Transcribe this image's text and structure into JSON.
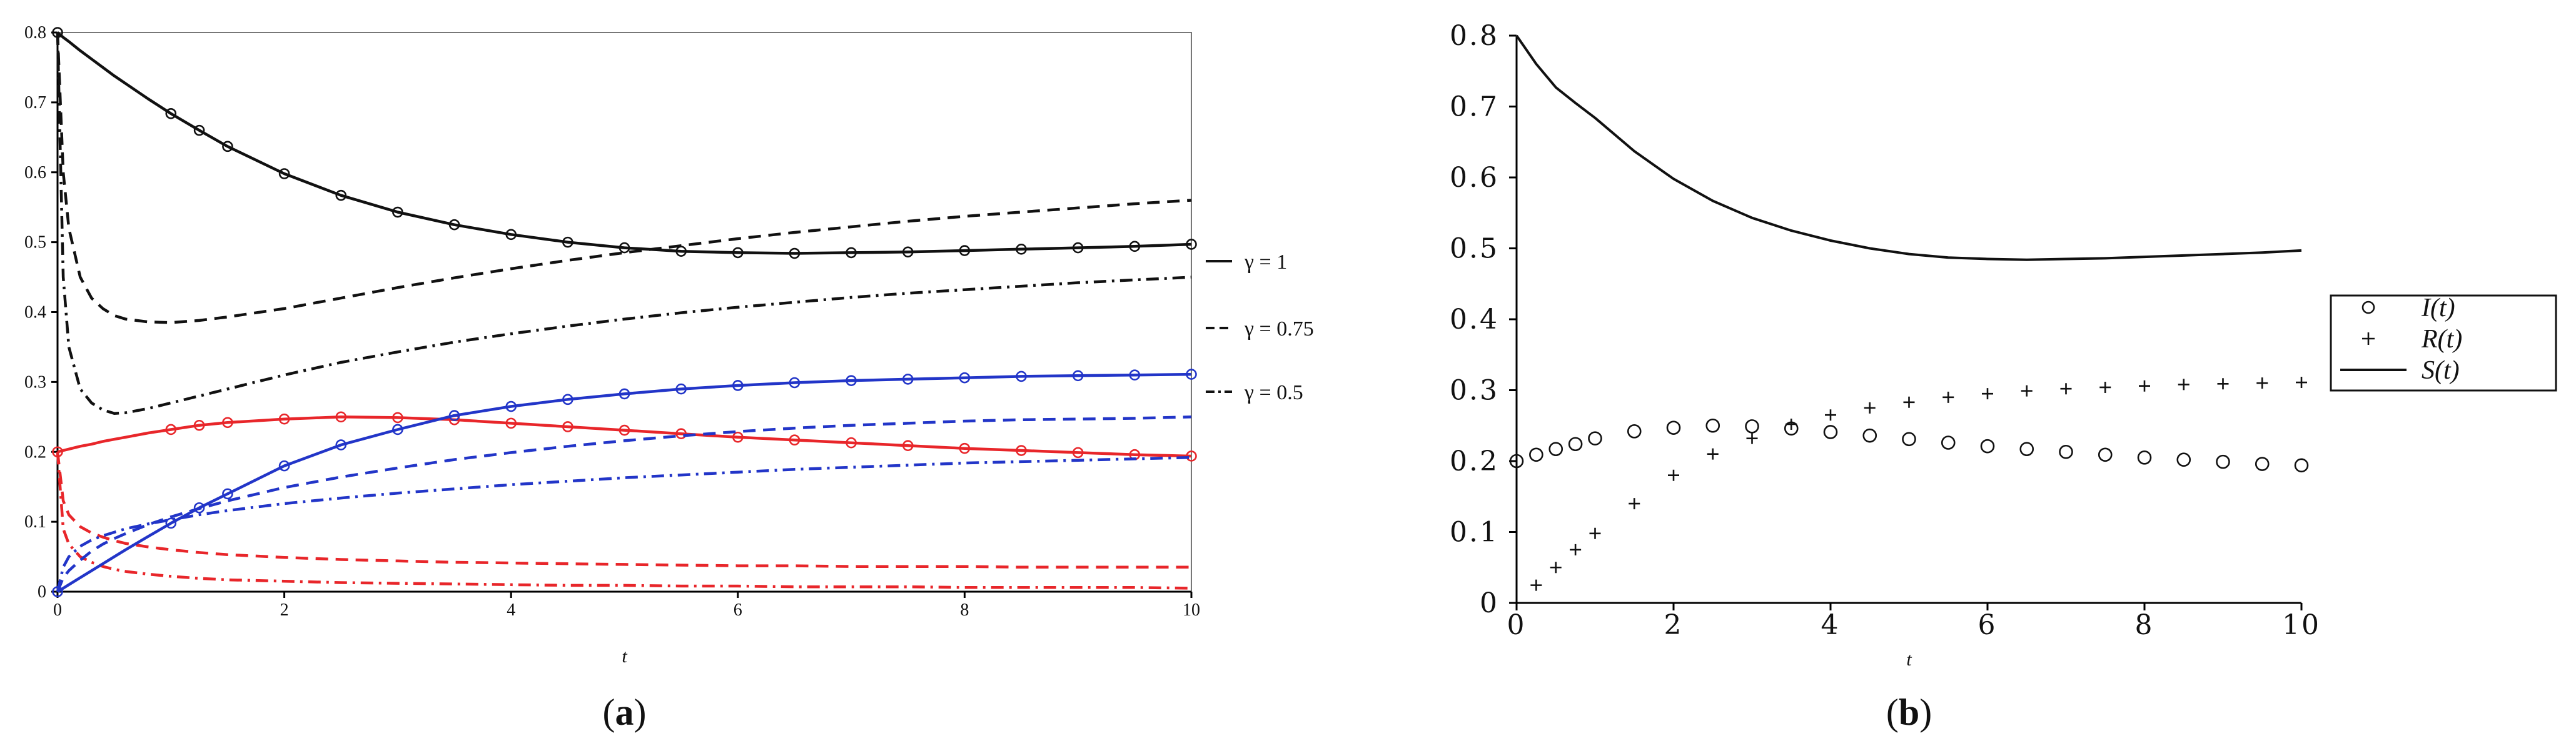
{
  "colors": {
    "black": "#111111",
    "red": "#e8262a",
    "blue": "#2235c8"
  },
  "chart_data": [
    {
      "type": "line",
      "panel_label": "a",
      "title": "",
      "xlabel": "t",
      "ylabel": "",
      "xlim": [
        0,
        10
      ],
      "ylim": [
        0,
        0.8
      ],
      "x_ticks": [
        "0",
        "2",
        "4",
        "6",
        "8",
        "10"
      ],
      "y_ticks": [
        "0",
        "0.1",
        "0.2",
        "0.3",
        "0.4",
        "0.5",
        "0.6",
        "0.7",
        "0.8"
      ],
      "legend": [
        {
          "label": "γ = 1",
          "style": "solid"
        },
        {
          "label": "γ = 0.75",
          "style": "dashed"
        },
        {
          "label": "γ = 0.5",
          "style": "dashdot"
        }
      ],
      "x": [
        0,
        0.05,
        0.1,
        0.2,
        0.3,
        0.4,
        0.5,
        0.6,
        0.8,
        1,
        1.25,
        1.5,
        2,
        2.5,
        3,
        3.5,
        4,
        4.5,
        5,
        5.5,
        6,
        6.5,
        7,
        7.5,
        8,
        8.5,
        9,
        9.5,
        10
      ],
      "series": [
        {
          "name": "S(t), γ = 1",
          "group": "S",
          "gamma": 1,
          "color": "black",
          "style": "solid",
          "markers": true,
          "values": [
            0.8,
            0.793,
            0.787,
            0.774,
            0.762,
            0.75,
            0.738,
            0.727,
            0.705,
            0.684,
            0.66,
            0.637,
            0.598,
            0.567,
            0.543,
            0.525,
            0.511,
            0.5,
            0.492,
            0.487,
            0.485,
            0.484,
            0.485,
            0.486,
            0.488,
            0.49,
            0.492,
            0.494,
            0.497
          ]
        },
        {
          "name": "S(t), γ = 0.75",
          "group": "S",
          "gamma": 0.75,
          "color": "black",
          "style": "dashed",
          "markers": false,
          "values": [
            0.8,
            0.6,
            0.52,
            0.45,
            0.42,
            0.405,
            0.395,
            0.39,
            0.386,
            0.385,
            0.388,
            0.393,
            0.405,
            0.42,
            0.435,
            0.449,
            0.462,
            0.474,
            0.485,
            0.495,
            0.505,
            0.514,
            0.522,
            0.53,
            0.537,
            0.543,
            0.549,
            0.555,
            0.56
          ]
        },
        {
          "name": "S(t), γ = 0.5",
          "group": "S",
          "gamma": 0.5,
          "color": "black",
          "style": "dashdot",
          "markers": false,
          "values": [
            0.8,
            0.45,
            0.35,
            0.29,
            0.27,
            0.26,
            0.255,
            0.256,
            0.262,
            0.27,
            0.28,
            0.29,
            0.31,
            0.328,
            0.343,
            0.357,
            0.369,
            0.38,
            0.39,
            0.399,
            0.407,
            0.414,
            0.421,
            0.427,
            0.432,
            0.437,
            0.442,
            0.446,
            0.45
          ]
        },
        {
          "name": "I(t), γ = 1",
          "group": "I",
          "gamma": 1,
          "color": "red",
          "style": "solid",
          "markers": true,
          "values": [
            0.2,
            0.202,
            0.204,
            0.208,
            0.211,
            0.215,
            0.218,
            0.221,
            0.227,
            0.232,
            0.238,
            0.242,
            0.247,
            0.25,
            0.249,
            0.246,
            0.241,
            0.236,
            0.231,
            0.226,
            0.221,
            0.217,
            0.213,
            0.209,
            0.205,
            0.202,
            0.199,
            0.196,
            0.194
          ]
        },
        {
          "name": "I(t), γ = 0.75",
          "group": "I",
          "gamma": 0.75,
          "color": "red",
          "style": "dashed",
          "markers": false,
          "values": [
            0.2,
            0.13,
            0.11,
            0.093,
            0.084,
            0.078,
            0.073,
            0.069,
            0.064,
            0.06,
            0.056,
            0.053,
            0.049,
            0.046,
            0.044,
            0.042,
            0.041,
            0.04,
            0.039,
            0.038,
            0.037,
            0.037,
            0.036,
            0.036,
            0.036,
            0.035,
            0.035,
            0.035,
            0.035
          ]
        },
        {
          "name": "I(t), γ = 0.5",
          "group": "I",
          "gamma": 0.5,
          "color": "red",
          "style": "dashdot",
          "markers": false,
          "values": [
            0.2,
            0.09,
            0.068,
            0.05,
            0.042,
            0.036,
            0.032,
            0.029,
            0.025,
            0.022,
            0.019,
            0.017,
            0.015,
            0.013,
            0.012,
            0.011,
            0.01,
            0.009,
            0.009,
            0.008,
            0.008,
            0.007,
            0.007,
            0.007,
            0.006,
            0.006,
            0.006,
            0.006,
            0.005
          ]
        },
        {
          "name": "R(t), γ = 1",
          "group": "R",
          "gamma": 1,
          "color": "blue",
          "style": "solid",
          "markers": true,
          "values": [
            0,
            0.005,
            0.01,
            0.02,
            0.03,
            0.04,
            0.05,
            0.06,
            0.079,
            0.098,
            0.12,
            0.14,
            0.18,
            0.21,
            0.232,
            0.252,
            0.265,
            0.275,
            0.283,
            0.29,
            0.295,
            0.299,
            0.302,
            0.304,
            0.306,
            0.308,
            0.309,
            0.31,
            0.311
          ]
        },
        {
          "name": "R(t), γ = 0.75",
          "group": "R",
          "gamma": 0.75,
          "color": "blue",
          "style": "dashed",
          "markers": false,
          "values": [
            0,
            0.02,
            0.03,
            0.045,
            0.058,
            0.068,
            0.076,
            0.083,
            0.096,
            0.107,
            0.119,
            0.13,
            0.149,
            0.164,
            0.177,
            0.189,
            0.199,
            0.208,
            0.216,
            0.223,
            0.229,
            0.234,
            0.238,
            0.241,
            0.244,
            0.246,
            0.247,
            0.248,
            0.25
          ]
        },
        {
          "name": "R(t), γ = 0.5",
          "group": "R",
          "gamma": 0.5,
          "color": "blue",
          "style": "dashdot",
          "markers": false,
          "values": [
            0,
            0.035,
            0.05,
            0.065,
            0.074,
            0.08,
            0.085,
            0.09,
            0.097,
            0.103,
            0.11,
            0.116,
            0.126,
            0.134,
            0.141,
            0.147,
            0.153,
            0.158,
            0.163,
            0.167,
            0.171,
            0.175,
            0.178,
            0.181,
            0.184,
            0.186,
            0.188,
            0.19,
            0.192
          ]
        }
      ]
    },
    {
      "type": "line",
      "panel_label": "b",
      "title": "",
      "xlabel": "t",
      "ylabel": "",
      "xlim": [
        0,
        10
      ],
      "ylim": [
        0,
        0.8
      ],
      "x_ticks": [
        "0",
        "2",
        "4",
        "6",
        "8",
        "10"
      ],
      "y_ticks": [
        "0",
        "0.1",
        "0.2",
        "0.3",
        "0.4",
        "0.5",
        "0.6",
        "0.7",
        "0.8"
      ],
      "legend": [
        {
          "label": "I(t)",
          "style": "circle"
        },
        {
          "label": "R(t)",
          "style": "plus"
        },
        {
          "label": "S(t)",
          "style": "solid"
        }
      ],
      "x": [
        0,
        0.25,
        0.5,
        0.75,
        1,
        1.5,
        2,
        2.5,
        3,
        3.5,
        4,
        4.5,
        5,
        5.5,
        6,
        6.5,
        7,
        7.5,
        8,
        8.5,
        9,
        9.5,
        10
      ],
      "series": [
        {
          "name": "I(t)",
          "style": "circle",
          "values": [
            0.2,
            0.209,
            0.217,
            0.224,
            0.232,
            0.242,
            0.247,
            0.25,
            0.249,
            0.246,
            0.241,
            0.236,
            0.231,
            0.226,
            0.221,
            0.217,
            0.213,
            0.209,
            0.205,
            0.202,
            0.199,
            0.196,
            0.194
          ]
        },
        {
          "name": "R(t)",
          "style": "plus",
          "values": [
            0,
            0.025,
            0.05,
            0.075,
            0.098,
            0.14,
            0.18,
            0.21,
            0.232,
            0.252,
            0.265,
            0.275,
            0.283,
            0.29,
            0.295,
            0.299,
            0.302,
            0.304,
            0.306,
            0.308,
            0.309,
            0.31,
            0.311
          ]
        },
        {
          "name": "S(t)",
          "style": "solid",
          "values": [
            0.8,
            0.76,
            0.727,
            0.705,
            0.684,
            0.637,
            0.598,
            0.567,
            0.543,
            0.525,
            0.511,
            0.5,
            0.492,
            0.487,
            0.485,
            0.484,
            0.485,
            0.486,
            0.488,
            0.49,
            0.492,
            0.494,
            0.497
          ]
        }
      ]
    }
  ]
}
